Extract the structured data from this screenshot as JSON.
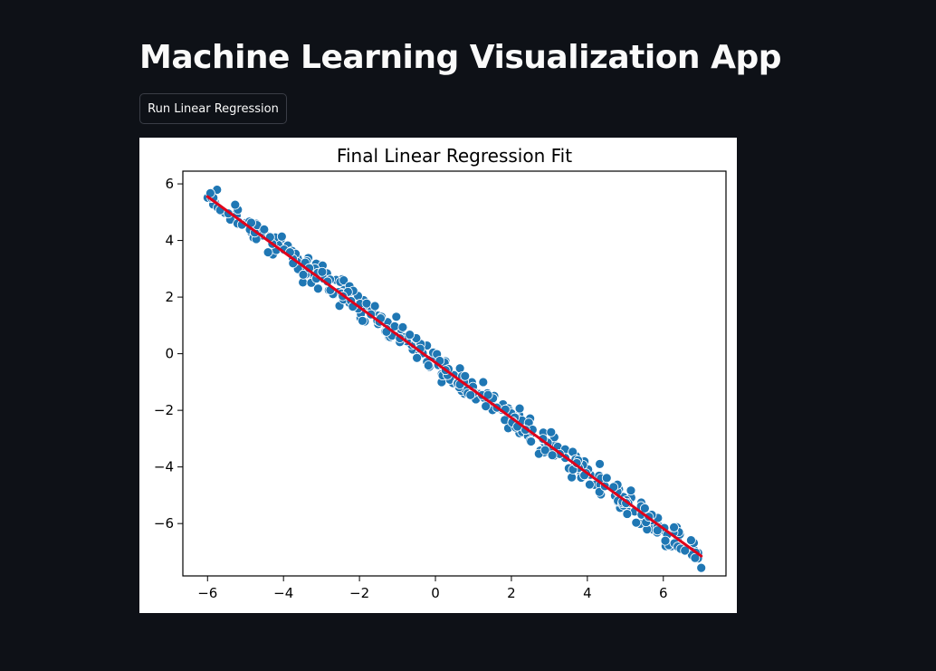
{
  "app": {
    "title": "Machine Learning Visualization App"
  },
  "controls": {
    "run_button_label": "Run Linear Regression"
  },
  "colors": {
    "background": "#0e1117",
    "text": "#fafafa",
    "button_border": "#3a3d46",
    "point_fill": "#1f77b4",
    "point_edge": "#ffffff",
    "fit_line": "#e0001a"
  },
  "chart_data": {
    "type": "scatter",
    "title": "Final Linear Regression Fit",
    "xlabel": "",
    "ylabel": "",
    "xlim": [
      -6.65,
      7.65
    ],
    "ylim": [
      -7.85,
      6.45
    ],
    "x_ticks": [
      {
        "value": -6,
        "label": "−6"
      },
      {
        "value": -4,
        "label": "−4"
      },
      {
        "value": -2,
        "label": "−2"
      },
      {
        "value": 0,
        "label": "0"
      },
      {
        "value": 2,
        "label": "2"
      },
      {
        "value": 4,
        "label": "4"
      },
      {
        "value": 6,
        "label": "6"
      }
    ],
    "y_ticks": [
      {
        "value": 6,
        "label": "6"
      },
      {
        "value": 4,
        "label": "4"
      },
      {
        "value": 2,
        "label": "2"
      },
      {
        "value": 0,
        "label": "0"
      },
      {
        "value": -2,
        "label": "−2"
      },
      {
        "value": -4,
        "label": "−4"
      },
      {
        "value": -6,
        "label": "−6"
      }
    ],
    "grid": false,
    "legend": "none",
    "scatter": {
      "x_range": [
        -6,
        7
      ],
      "trend_slope": -0.98,
      "trend_intercept": -0.3,
      "noise_amplitude": 0.25,
      "point_count": 400
    },
    "fit_line": {
      "x": [
        -6,
        7
      ],
      "y": [
        5.55,
        -7.15
      ]
    }
  }
}
